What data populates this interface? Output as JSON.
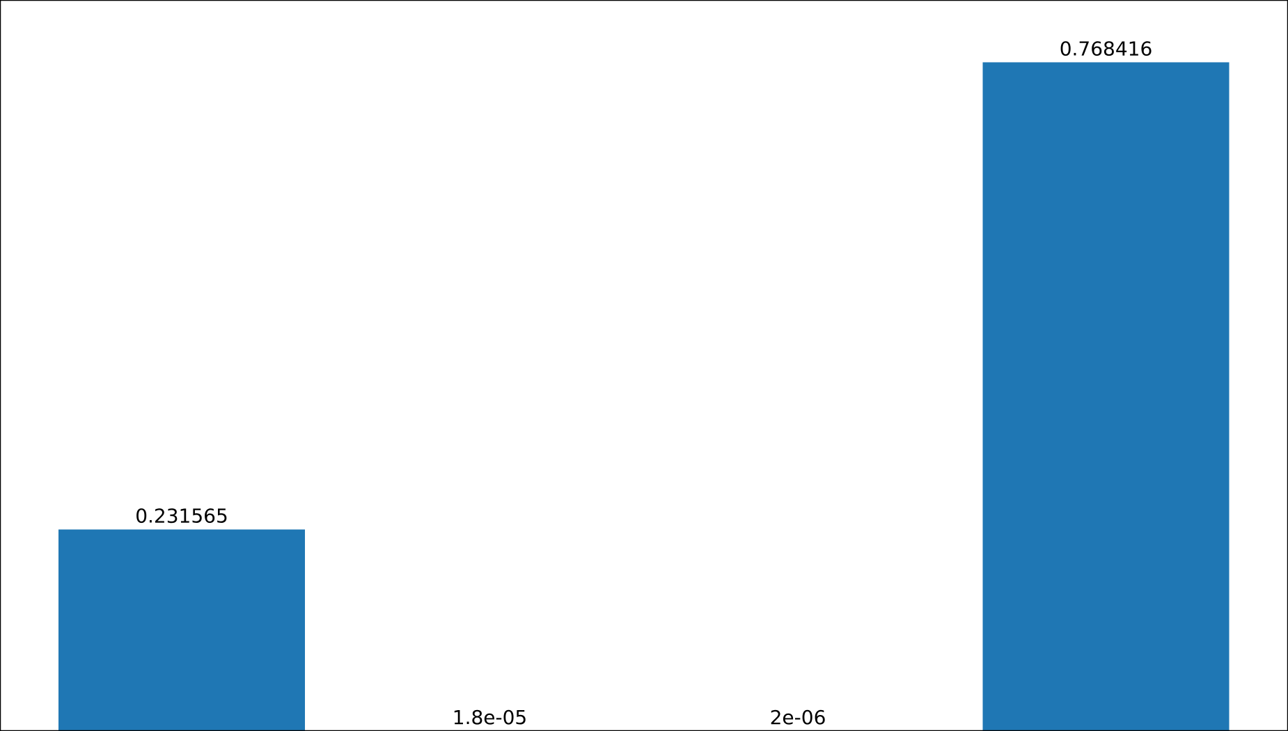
{
  "chart_data": {
    "type": "bar",
    "categories": [
      "",
      "",
      "",
      ""
    ],
    "values": [
      0.231565,
      1.8e-05,
      2e-06,
      0.768416
    ],
    "data_labels": [
      "0.231565",
      "1.8e-05",
      "2e-06",
      "0.768416"
    ],
    "title": "",
    "xlabel": "",
    "ylabel": "",
    "ylim": [
      0,
      0.8
    ],
    "grid": false,
    "legend": "none",
    "bar_color": "#1f77b4",
    "label_color": "#000000",
    "frame_color": "#000000"
  }
}
